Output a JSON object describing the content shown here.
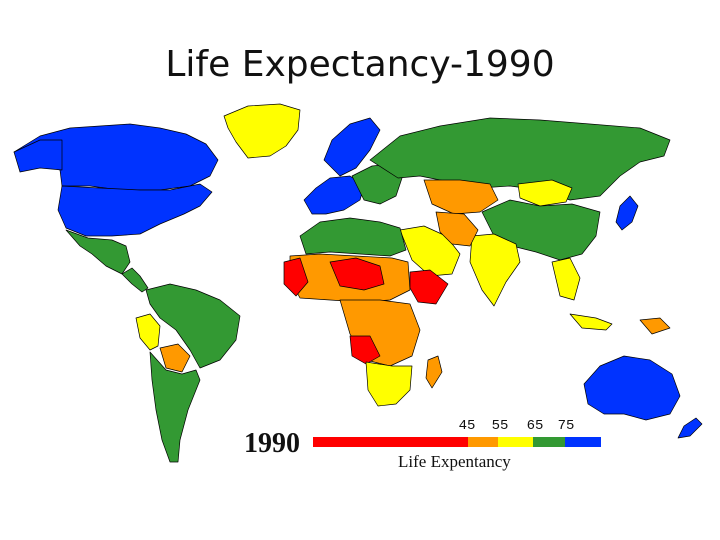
{
  "slide": {
    "title": "Life Expectancy-1990"
  },
  "map": {
    "year_label": "1990",
    "legend_title": "Life Expentancy",
    "legend_ticks": [
      "45",
      "55",
      "65",
      "75"
    ],
    "legend_colors": [
      "#ff0000",
      "#ff9900",
      "#ffff00",
      "#339933",
      "#0033ff"
    ],
    "ocean_color": "#ffffff",
    "border_color": "#000000"
  }
}
